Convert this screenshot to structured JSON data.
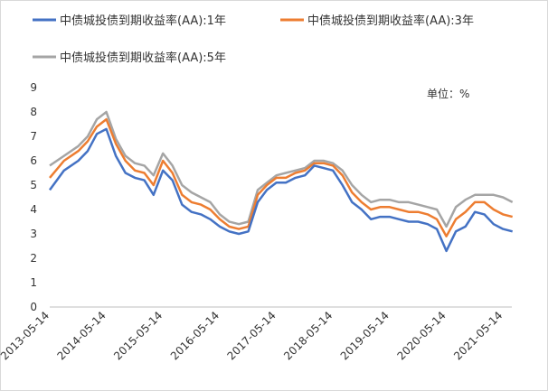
{
  "chart_data": {
    "type": "line",
    "unit_label": "单位：%",
    "x_tick_labels": [
      "2013-05-14",
      "2014-05-14",
      "2015-05-14",
      "2016-05-14",
      "2017-05-14",
      "2018-05-14",
      "2019-05-14",
      "2020-05-14",
      "2021-05-14"
    ],
    "x": [
      "2013-05",
      "2013-08",
      "2013-11",
      "2014-01",
      "2014-03",
      "2014-05",
      "2014-07",
      "2014-09",
      "2014-11",
      "2015-01",
      "2015-03",
      "2015-05",
      "2015-07",
      "2015-09",
      "2015-11",
      "2016-01",
      "2016-03",
      "2016-05",
      "2016-07",
      "2016-09",
      "2016-11",
      "2017-01",
      "2017-03",
      "2017-05",
      "2017-07",
      "2017-09",
      "2017-11",
      "2018-01",
      "2018-03",
      "2018-05",
      "2018-07",
      "2018-09",
      "2018-11",
      "2019-01",
      "2019-03",
      "2019-05",
      "2019-07",
      "2019-09",
      "2019-11",
      "2020-01",
      "2020-03",
      "2020-05",
      "2020-07",
      "2020-09",
      "2020-11",
      "2021-01",
      "2021-03",
      "2021-05",
      "2021-07"
    ],
    "series": [
      {
        "name": "中债城投债到期收益率(AA):1年",
        "color": "#4472C4",
        "values": [
          4.8,
          5.6,
          6.0,
          6.4,
          7.1,
          7.3,
          6.2,
          5.5,
          5.3,
          5.2,
          4.6,
          5.6,
          5.2,
          4.2,
          3.9,
          3.8,
          3.6,
          3.3,
          3.1,
          3.0,
          3.1,
          4.3,
          4.8,
          5.1,
          5.1,
          5.3,
          5.4,
          5.8,
          5.7,
          5.6,
          5.0,
          4.3,
          4.0,
          3.6,
          3.7,
          3.7,
          3.6,
          3.5,
          3.5,
          3.4,
          3.2,
          2.3,
          3.1,
          3.3,
          3.9,
          3.8,
          3.4,
          3.2,
          3.1
        ]
      },
      {
        "name": "中债城投债到期收益率(AA):3年",
        "color": "#ED7D31",
        "values": [
          5.3,
          6.0,
          6.4,
          6.8,
          7.4,
          7.7,
          6.7,
          6.0,
          5.6,
          5.5,
          5.0,
          6.0,
          5.5,
          4.6,
          4.3,
          4.2,
          4.0,
          3.6,
          3.3,
          3.2,
          3.3,
          4.6,
          5.0,
          5.3,
          5.3,
          5.5,
          5.6,
          5.9,
          5.9,
          5.8,
          5.4,
          4.7,
          4.3,
          4.0,
          4.1,
          4.1,
          4.0,
          3.9,
          3.9,
          3.8,
          3.6,
          2.9,
          3.6,
          3.9,
          4.3,
          4.3,
          4.0,
          3.8,
          3.7
        ]
      },
      {
        "name": "中债城投债到期收益率(AA):5年",
        "color": "#A5A5A5",
        "values": [
          5.8,
          6.2,
          6.6,
          7.0,
          7.7,
          8.0,
          6.9,
          6.2,
          5.9,
          5.8,
          5.4,
          6.3,
          5.8,
          5.0,
          4.7,
          4.5,
          4.3,
          3.8,
          3.5,
          3.4,
          3.5,
          4.8,
          5.1,
          5.4,
          5.5,
          5.6,
          5.7,
          6.0,
          6.0,
          5.9,
          5.6,
          5.0,
          4.6,
          4.3,
          4.4,
          4.4,
          4.3,
          4.3,
          4.2,
          4.1,
          4.0,
          3.3,
          4.1,
          4.4,
          4.6,
          4.6,
          4.6,
          4.5,
          4.3
        ]
      }
    ],
    "ylim": [
      0,
      9
    ],
    "y_ticks": [
      0,
      1,
      2,
      3,
      4,
      5,
      6,
      7,
      8,
      9
    ],
    "grid": false,
    "legend_position": "top"
  }
}
